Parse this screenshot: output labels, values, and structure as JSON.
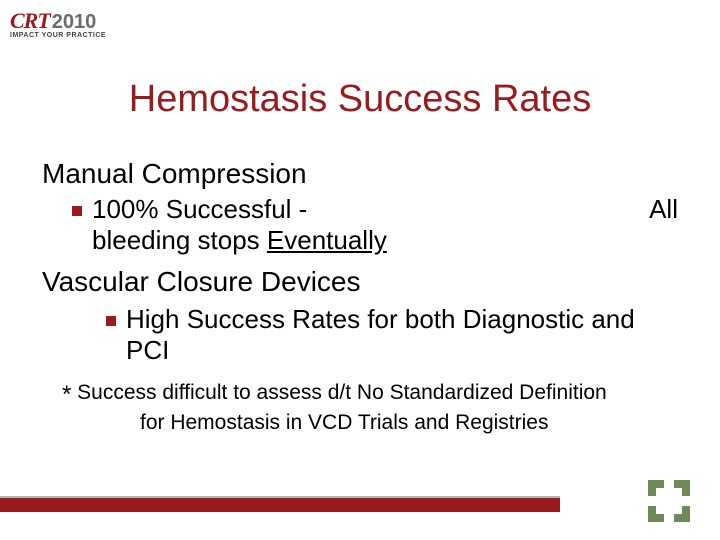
{
  "logo": {
    "brand": "CRT",
    "year": "2010",
    "tagline": "IMPACT YOUR PRACTICE"
  },
  "title": "Hemostasis Success Rates",
  "section1": {
    "heading": "Manual Compression",
    "bullet_left": "100% Successful -",
    "bullet_right": "All",
    "bullet_line2_a": "bleeding stops ",
    "bullet_line2_b": "Eventually"
  },
  "section2": {
    "heading": "Vascular Closure Devices",
    "bullet": "High Success Rates for both Diagnostic and PCI"
  },
  "footnote": {
    "star": "*",
    "line1": " Success difficult to assess d/t No Standardized Definition",
    "line2": "for Hemostasis in VCD Trials and Registries"
  },
  "colors": {
    "accent": "#9a1b1e",
    "text": "#000000",
    "corner": "#6f8a58",
    "grayline": "#b6b6b6",
    "background": "#ffffff"
  },
  "typography": {
    "title_fontsize": 38,
    "heading_fontsize": 28,
    "bullet_fontsize": 26,
    "footnote_fontsize": 21
  }
}
